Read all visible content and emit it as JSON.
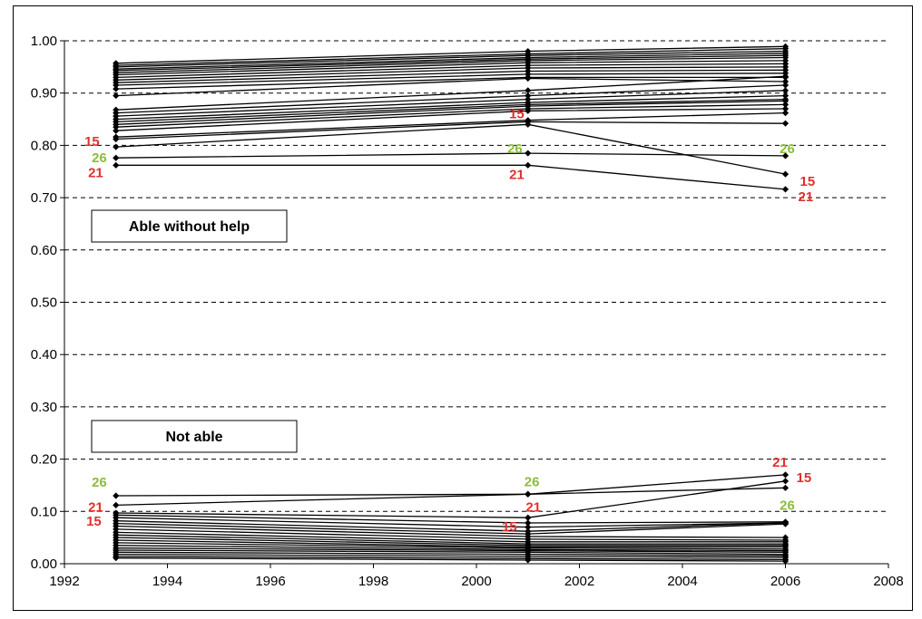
{
  "chart_data": {
    "type": "line",
    "x_axis": {
      "range": [
        1992,
        2008
      ],
      "ticks": [
        "1992",
        "1994",
        "1996",
        "1998",
        "2000",
        "2002",
        "2004",
        "2006",
        "2008"
      ]
    },
    "y_axis": {
      "range": [
        0,
        1
      ],
      "ticks": [
        "0.00",
        "0.10",
        "0.20",
        "0.30",
        "0.40",
        "0.50",
        "0.60",
        "0.70",
        "0.80",
        "0.90",
        "1.00"
      ]
    },
    "grid": "horizontal dashed",
    "x": [
      1993,
      2001,
      2006
    ],
    "panels": [
      {
        "label": "Able without help"
      },
      {
        "label": "Not able"
      }
    ],
    "highlight_colors": {
      "15": "#e03030",
      "21": "#e03030",
      "26": "#8cbc3c"
    },
    "marker_color": "#000000",
    "series_able": [
      {
        "name": "15",
        "values": [
          0.797,
          0.84,
          0.745
        ]
      },
      {
        "name": "21",
        "values": [
          0.762,
          0.762,
          0.716
        ]
      },
      {
        "name": "26",
        "values": [
          0.776,
          0.785,
          0.78
        ]
      },
      {
        "values": [
          0.957,
          0.98,
          0.989
        ]
      },
      {
        "values": [
          0.953,
          0.975,
          0.985
        ]
      },
      {
        "values": [
          0.95,
          0.972,
          0.98
        ]
      },
      {
        "values": [
          0.946,
          0.968,
          0.976
        ]
      },
      {
        "values": [
          0.943,
          0.965,
          0.972
        ]
      },
      {
        "values": [
          0.939,
          0.962,
          0.968
        ]
      },
      {
        "values": [
          0.935,
          0.958,
          0.962
        ]
      },
      {
        "values": [
          0.93,
          0.953,
          0.956
        ]
      },
      {
        "values": [
          0.925,
          0.948,
          0.95
        ]
      },
      {
        "values": [
          0.92,
          0.942,
          0.944
        ]
      },
      {
        "values": [
          0.915,
          0.936,
          0.938
        ]
      },
      {
        "values": [
          0.908,
          0.93,
          0.93
        ]
      },
      {
        "values": [
          0.895,
          0.928,
          0.922
        ]
      },
      {
        "values": [
          0.868,
          0.905,
          0.932
        ]
      },
      {
        "values": [
          0.862,
          0.895,
          0.915
        ]
      },
      {
        "values": [
          0.856,
          0.888,
          0.905
        ]
      },
      {
        "values": [
          0.85,
          0.882,
          0.895
        ]
      },
      {
        "values": [
          0.845,
          0.878,
          0.888
        ]
      },
      {
        "values": [
          0.84,
          0.875,
          0.885
        ]
      },
      {
        "values": [
          0.835,
          0.87,
          0.878
        ]
      },
      {
        "values": [
          0.828,
          0.866,
          0.87
        ]
      },
      {
        "values": [
          0.816,
          0.848,
          0.862
        ]
      },
      {
        "values": [
          0.812,
          0.845,
          0.842
        ]
      }
    ],
    "series_not_able": [
      {
        "name": "26",
        "values": [
          0.13,
          0.133,
          0.145
        ]
      },
      {
        "name": "21",
        "values": [
          0.112,
          0.133,
          0.17
        ]
      },
      {
        "name": "15",
        "values": [
          0.097,
          0.088,
          0.158
        ]
      },
      {
        "values": [
          0.093,
          0.078,
          0.08
        ]
      },
      {
        "values": [
          0.088,
          0.07,
          0.078
        ]
      },
      {
        "values": [
          0.082,
          0.062,
          0.078
        ]
      },
      {
        "values": [
          0.077,
          0.057,
          0.076
        ]
      },
      {
        "values": [
          0.072,
          0.052,
          0.05
        ]
      },
      {
        "values": [
          0.066,
          0.047,
          0.045
        ]
      },
      {
        "values": [
          0.06,
          0.042,
          0.042
        ]
      },
      {
        "values": [
          0.055,
          0.038,
          0.038
        ]
      },
      {
        "values": [
          0.05,
          0.035,
          0.035
        ]
      },
      {
        "values": [
          0.045,
          0.032,
          0.032
        ]
      },
      {
        "values": [
          0.04,
          0.03,
          0.028
        ]
      },
      {
        "values": [
          0.035,
          0.027,
          0.025
        ]
      },
      {
        "values": [
          0.03,
          0.025,
          0.022
        ]
      },
      {
        "values": [
          0.026,
          0.022,
          0.018
        ]
      },
      {
        "values": [
          0.022,
          0.018,
          0.015
        ]
      },
      {
        "values": [
          0.018,
          0.014,
          0.012
        ]
      },
      {
        "values": [
          0.014,
          0.01,
          0.008
        ]
      },
      {
        "values": [
          0.011,
          0.007,
          0.005
        ]
      }
    ]
  }
}
